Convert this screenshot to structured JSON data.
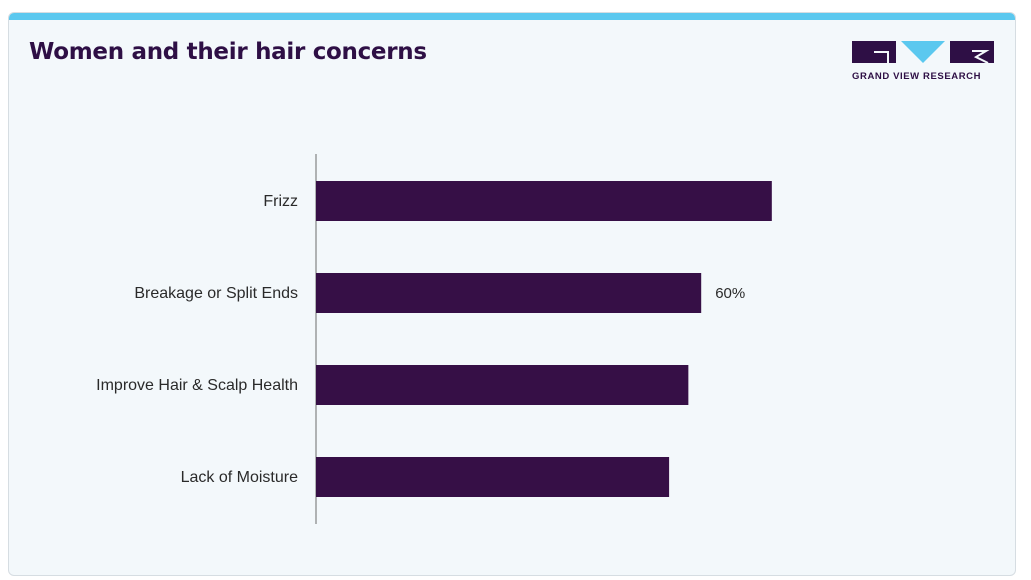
{
  "title": "Women and their hair concerns",
  "logo": {
    "text": "GRAND VIEW RESEARCH",
    "color": "#2e0f45",
    "accent": "#5bc8ef"
  },
  "colors": {
    "bar": "#360f46",
    "top_bar": "#5bc8ef",
    "background": "#f3f8fb"
  },
  "chart_data": {
    "type": "bar",
    "orientation": "horizontal",
    "title": "Women and their hair concerns",
    "categories": [
      "Frizz",
      "Breakage or Split Ends",
      "Improve Hair & Scalp Health",
      "Lack of Moisture"
    ],
    "values": [
      71,
      60,
      58,
      55
    ],
    "unit": "%",
    "data_labels": [
      "",
      "60%",
      "",
      ""
    ],
    "xlim": [
      0,
      100
    ],
    "grid": false,
    "legend": "none"
  }
}
